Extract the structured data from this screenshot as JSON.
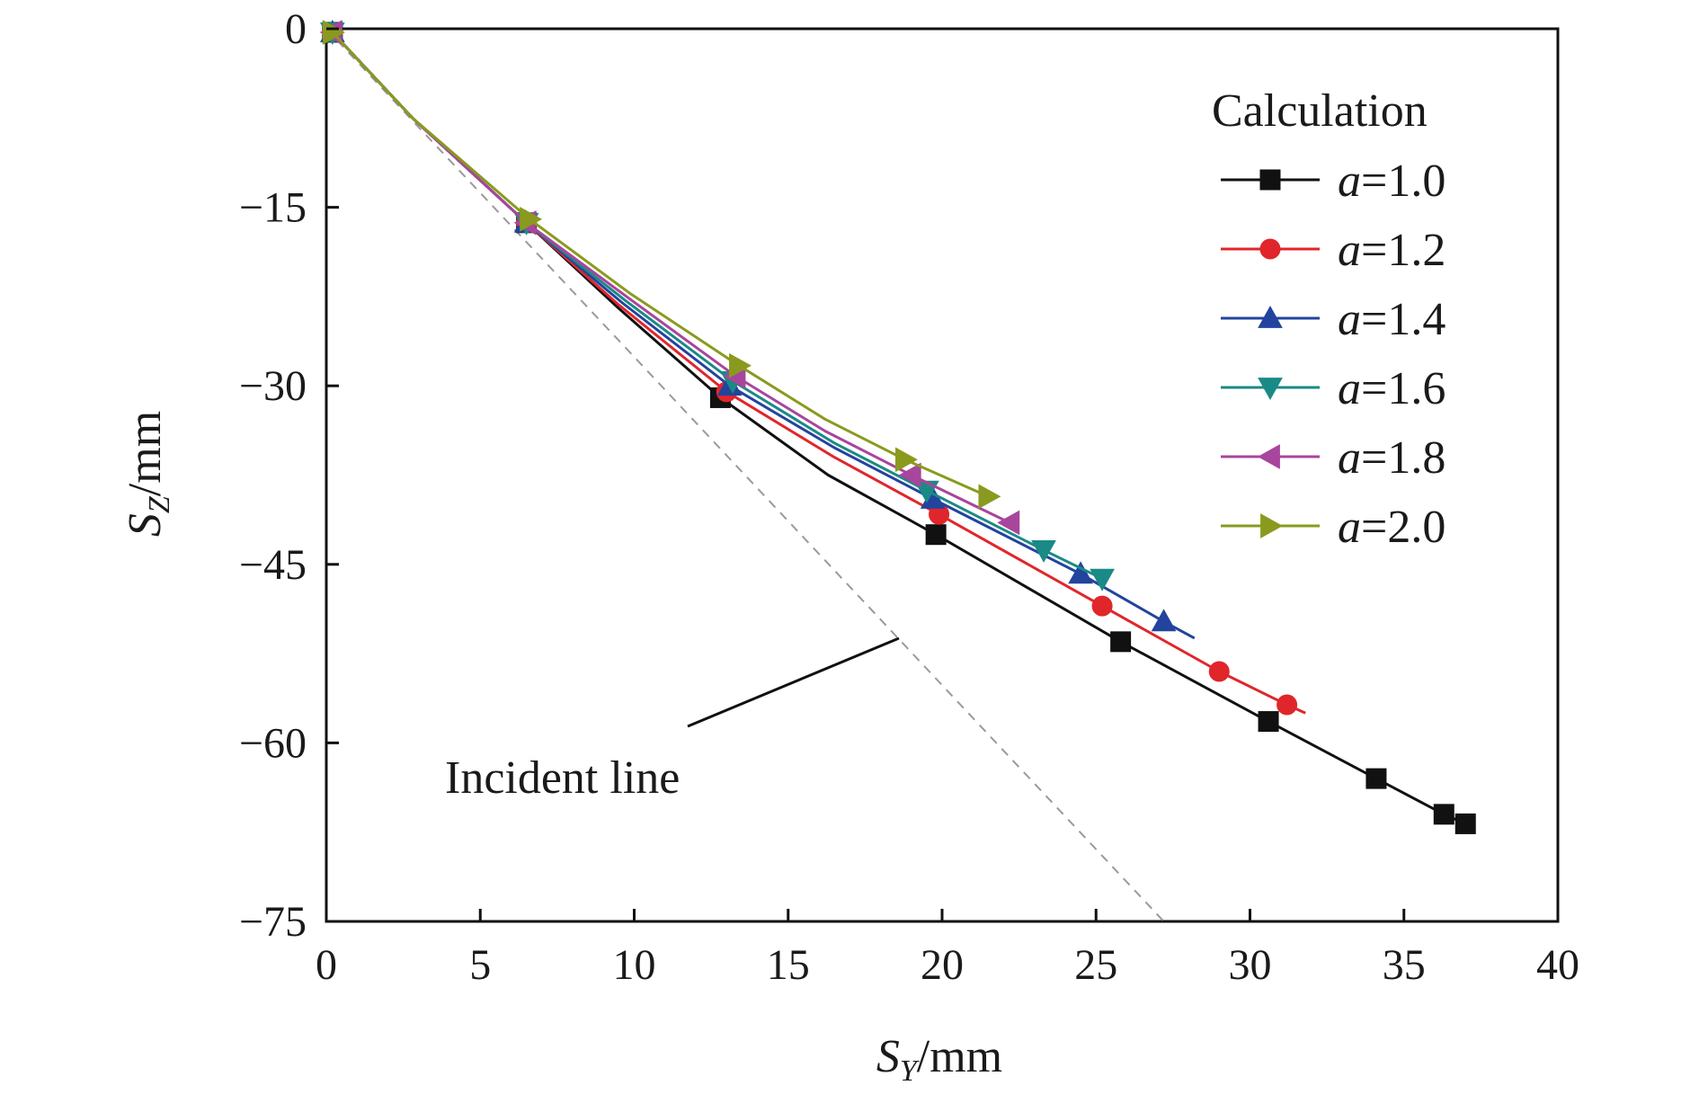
{
  "chart_data": {
    "type": "line",
    "xlabel": {
      "main": "S",
      "sub": "Y",
      "unit": "/mm"
    },
    "ylabel": {
      "main": "S",
      "sub": "Z",
      "unit": "/mm"
    },
    "xlim": [
      0,
      40
    ],
    "ylim": [
      -75,
      0
    ],
    "xticks": [
      0,
      5,
      10,
      15,
      20,
      25,
      30,
      35,
      40
    ],
    "yticks": [
      0,
      -15,
      -30,
      -45,
      -60,
      -75
    ],
    "xtick_labels": [
      "0",
      "5",
      "10",
      "15",
      "20",
      "25",
      "30",
      "35",
      "40"
    ],
    "ytick_labels": [
      "0",
      "−15",
      "−30",
      "−45",
      "−60",
      "−75"
    ],
    "grid": false,
    "legend": {
      "title": "Calculation",
      "position": "top-right",
      "var": "a",
      "eq": "="
    },
    "incident_line": {
      "label": "Incident line",
      "points": [
        [
          0,
          0
        ],
        [
          27.2,
          -75
        ]
      ],
      "color": "#9a9a9a",
      "style": "dashed"
    },
    "series": [
      {
        "name": "1.0",
        "color": "#111111",
        "marker": "square",
        "points": [
          [
            0.2,
            -0.3
          ],
          [
            2.8,
            -7.5
          ],
          [
            6.5,
            -16.3
          ],
          [
            9.5,
            -23.5
          ],
          [
            12.8,
            -31.0
          ],
          [
            16.3,
            -37.5
          ],
          [
            19.8,
            -42.5
          ],
          [
            25.8,
            -51.5
          ],
          [
            30.6,
            -58.2
          ],
          [
            34.1,
            -63.0
          ],
          [
            36.3,
            -66.0
          ],
          [
            37.0,
            -66.8
          ]
        ],
        "markers": [
          [
            0.2,
            -0.3
          ],
          [
            6.5,
            -16.3
          ],
          [
            12.8,
            -31.0
          ],
          [
            19.8,
            -42.5
          ],
          [
            25.8,
            -51.5
          ],
          [
            30.6,
            -58.2
          ],
          [
            34.1,
            -63.0
          ],
          [
            36.3,
            -66.0
          ],
          [
            37.0,
            -66.8
          ]
        ]
      },
      {
        "name": "1.2",
        "color": "#e0262b",
        "marker": "circle",
        "points": [
          [
            0.2,
            -0.3
          ],
          [
            2.8,
            -7.5
          ],
          [
            6.5,
            -16.3
          ],
          [
            9.5,
            -23.2
          ],
          [
            13.0,
            -30.5
          ],
          [
            16.5,
            -36.0
          ],
          [
            19.9,
            -40.8
          ],
          [
            25.2,
            -48.5
          ],
          [
            29.0,
            -54.0
          ],
          [
            31.2,
            -56.8
          ],
          [
            31.8,
            -57.5
          ]
        ],
        "markers": [
          [
            0.2,
            -0.3
          ],
          [
            6.5,
            -16.3
          ],
          [
            13.0,
            -30.5
          ],
          [
            19.9,
            -40.8
          ],
          [
            25.2,
            -48.5
          ],
          [
            29.0,
            -54.0
          ],
          [
            31.2,
            -56.8
          ]
        ]
      },
      {
        "name": "1.4",
        "color": "#22449e",
        "marker": "triangle-up",
        "points": [
          [
            0.2,
            -0.3
          ],
          [
            2.8,
            -7.5
          ],
          [
            6.5,
            -16.3
          ],
          [
            9.6,
            -23.0
          ],
          [
            13.1,
            -30.0
          ],
          [
            16.5,
            -35.2
          ],
          [
            19.7,
            -39.5
          ],
          [
            24.5,
            -45.8
          ],
          [
            27.2,
            -49.8
          ],
          [
            28.2,
            -51.2
          ]
        ],
        "markers": [
          [
            0.2,
            -0.3
          ],
          [
            6.5,
            -16.3
          ],
          [
            13.1,
            -30.0
          ],
          [
            19.7,
            -39.5
          ],
          [
            24.5,
            -45.8
          ],
          [
            27.2,
            -49.8
          ]
        ]
      },
      {
        "name": "1.6",
        "color": "#1a8a86",
        "marker": "triangle-down",
        "points": [
          [
            0.2,
            -0.3
          ],
          [
            2.8,
            -7.5
          ],
          [
            6.5,
            -16.3
          ],
          [
            9.7,
            -22.8
          ],
          [
            13.2,
            -29.6
          ],
          [
            16.5,
            -34.8
          ],
          [
            19.5,
            -38.8
          ],
          [
            23.3,
            -43.8
          ],
          [
            25.2,
            -46.2
          ]
        ],
        "markers": [
          [
            0.2,
            -0.3
          ],
          [
            6.5,
            -16.3
          ],
          [
            13.2,
            -29.6
          ],
          [
            19.5,
            -38.8
          ],
          [
            23.3,
            -43.8
          ],
          [
            25.2,
            -46.2
          ]
        ]
      },
      {
        "name": "1.8",
        "color": "#a8459c",
        "marker": "triangle-left",
        "points": [
          [
            0.2,
            -0.3
          ],
          [
            2.8,
            -7.5
          ],
          [
            6.5,
            -16.3
          ],
          [
            9.8,
            -22.6
          ],
          [
            13.3,
            -29.2
          ],
          [
            16.2,
            -33.8
          ],
          [
            19.0,
            -37.5
          ],
          [
            22.2,
            -41.5
          ]
        ],
        "markers": [
          [
            0.2,
            -0.3
          ],
          [
            6.5,
            -16.3
          ],
          [
            13.3,
            -29.2
          ],
          [
            19.0,
            -37.5
          ],
          [
            22.2,
            -41.5
          ]
        ]
      },
      {
        "name": "2.0",
        "color": "#8a9a1e",
        "marker": "triangle-right",
        "points": [
          [
            0.2,
            -0.3
          ],
          [
            2.8,
            -7.5
          ],
          [
            6.6,
            -16.0
          ],
          [
            9.9,
            -22.3
          ],
          [
            13.4,
            -28.3
          ],
          [
            16.2,
            -32.8
          ],
          [
            18.8,
            -36.2
          ],
          [
            21.5,
            -39.3
          ]
        ],
        "markers": [
          [
            0.2,
            -0.3
          ],
          [
            6.6,
            -16.0
          ],
          [
            13.4,
            -28.3
          ],
          [
            18.8,
            -36.2
          ],
          [
            21.5,
            -39.3
          ]
        ]
      }
    ]
  }
}
